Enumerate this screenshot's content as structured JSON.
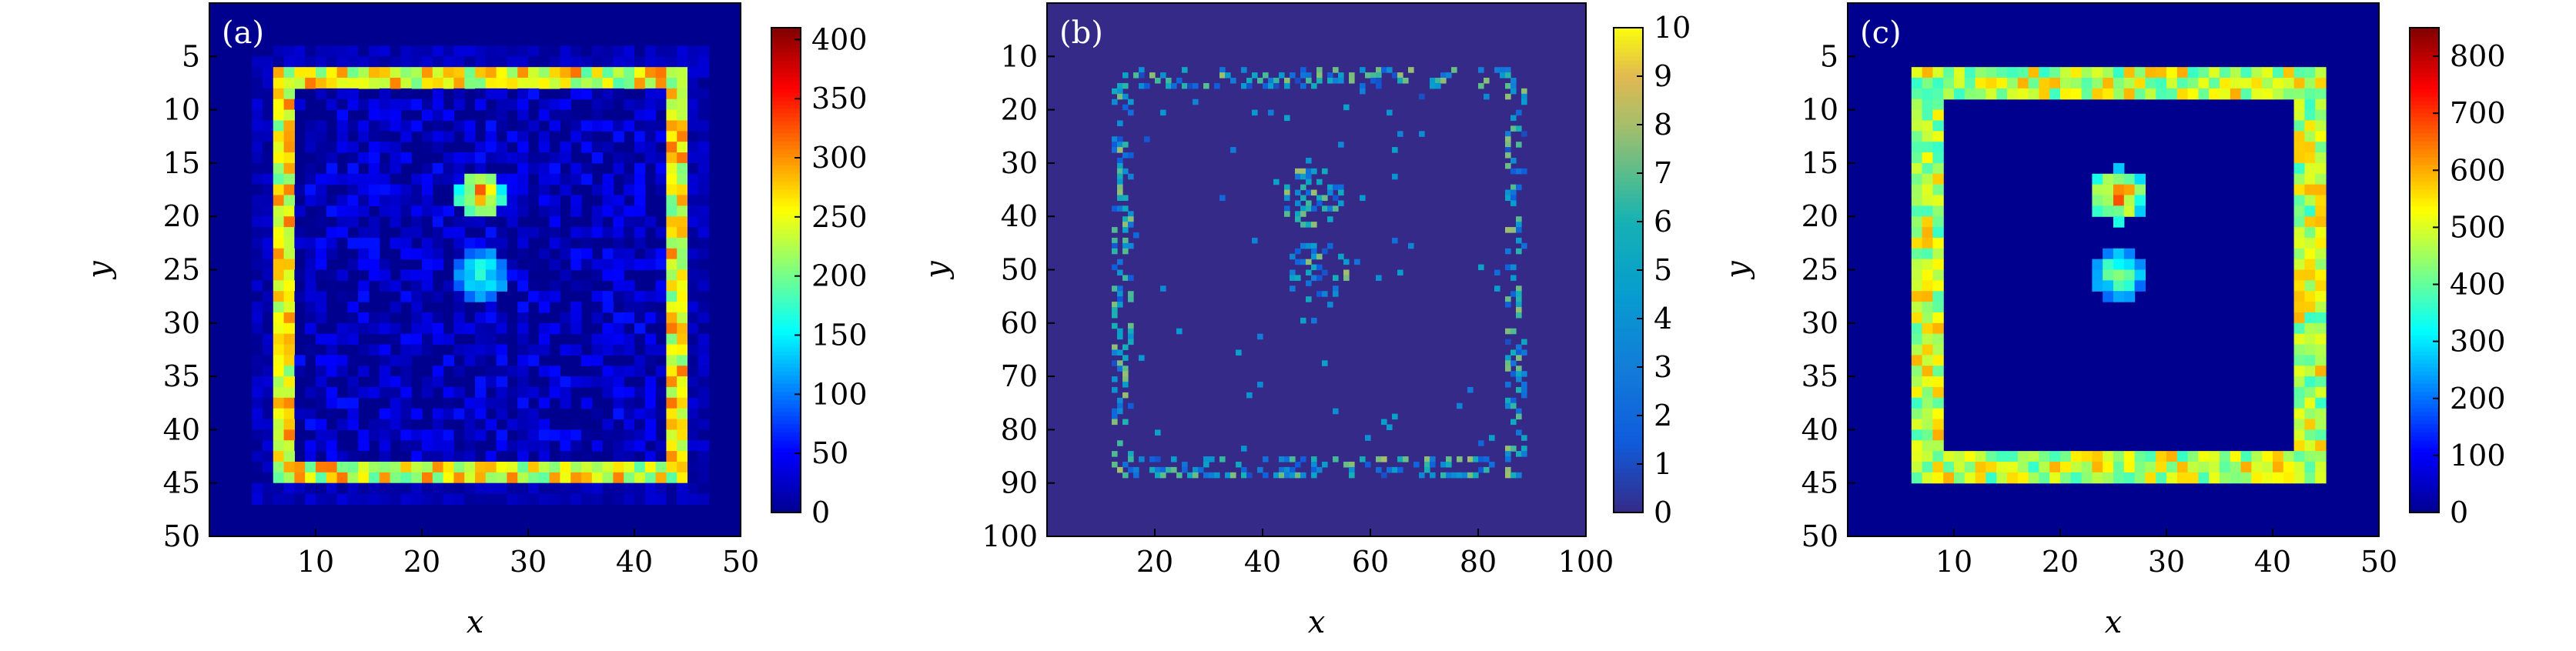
{
  "chart_data": [
    {
      "type": "heatmap",
      "panel_label": "(a)",
      "xlabel": "x",
      "ylabel": "y",
      "xlim": [
        0,
        50
      ],
      "ylim": [
        50,
        0
      ],
      "xticks": [
        "10",
        "20",
        "30",
        "40",
        "50"
      ],
      "yticks": [
        "5",
        "10",
        "15",
        "20",
        "25",
        "30",
        "35",
        "40",
        "45",
        "50"
      ],
      "grid_size": 50,
      "colormap": "jet",
      "colorbar": {
        "min": 0,
        "max": 410,
        "ticks": [
          "0",
          "50",
          "100",
          "150",
          "200",
          "250",
          "300",
          "350",
          "400"
        ]
      },
      "structure": {
        "frame": {
          "x0": 6,
          "y0": 6,
          "x1": 44,
          "y1": 44,
          "thickness": 1.6,
          "intensity": 250
        },
        "blobs": [
          {
            "cx": 25,
            "cy": 17.5,
            "r": 2.4,
            "intensity": 330
          },
          {
            "cx": 25,
            "cy": 25,
            "r": 2.6,
            "intensity": 200
          }
        ],
        "interior_noise": 90,
        "outside_noise": 35
      }
    },
    {
      "type": "heatmap",
      "panel_label": "(b)",
      "xlabel": "x",
      "ylabel": "y",
      "xlim": [
        0,
        100
      ],
      "ylim": [
        100,
        0
      ],
      "xticks": [
        "20",
        "40",
        "60",
        "80",
        "100"
      ],
      "yticks": [
        "10",
        "20",
        "30",
        "40",
        "50",
        "60",
        "70",
        "80",
        "90",
        "100"
      ],
      "grid_size": 100,
      "colormap": "parula",
      "colorbar": {
        "min": 0,
        "max": 10,
        "ticks": [
          "0",
          "1",
          "2",
          "3",
          "4",
          "5",
          "6",
          "7",
          "8",
          "9",
          "10"
        ]
      },
      "structure": {
        "frame": {
          "x0": 12,
          "y0": 12,
          "x1": 88,
          "y1": 88,
          "thickness": 3,
          "density": 0.32
        },
        "blobs": [
          {
            "cx": 49,
            "cy": 36,
            "r": 6,
            "density": 0.45
          },
          {
            "cx": 50,
            "cy": 50,
            "r": 6,
            "density": 0.28
          }
        ],
        "interior_density": 0.012,
        "value_range": [
          1,
          8
        ]
      }
    },
    {
      "type": "heatmap",
      "panel_label": "(c)",
      "xlabel": "x",
      "ylabel": "y",
      "xlim": [
        0,
        50
      ],
      "ylim": [
        50,
        0
      ],
      "xticks": [
        "10",
        "20",
        "30",
        "40",
        "50"
      ],
      "yticks": [
        "5",
        "10",
        "15",
        "20",
        "25",
        "30",
        "35",
        "40",
        "45",
        "50"
      ],
      "grid_size": 50,
      "colormap": "jet",
      "colorbar": {
        "min": 0,
        "max": 850,
        "ticks": [
          "0",
          "100",
          "200",
          "300",
          "400",
          "500",
          "600",
          "700",
          "800"
        ]
      },
      "structure": {
        "frame": {
          "x0": 6,
          "y0": 6,
          "x1": 44,
          "y1": 44,
          "thickness": 2,
          "intensity": 480
        },
        "blobs": [
          {
            "cx": 25,
            "cy": 17.5,
            "r": 2.6,
            "intensity": 720
          },
          {
            "cx": 25,
            "cy": 25,
            "r": 2.6,
            "intensity": 460
          }
        ],
        "interior_noise": 0,
        "outside_noise": 0
      }
    }
  ]
}
